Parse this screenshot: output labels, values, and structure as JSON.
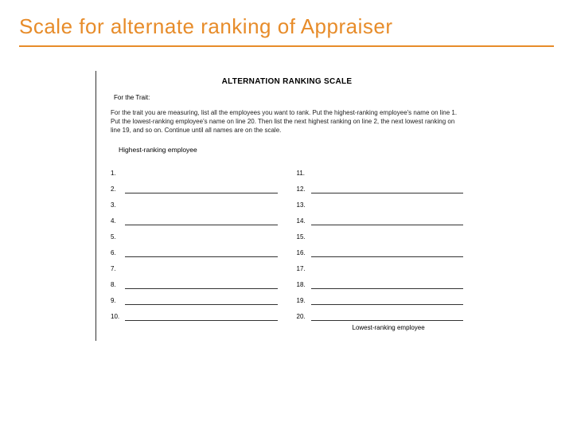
{
  "title": "Scale for alternate ranking of Appraiser",
  "form": {
    "heading": "ALTERNATION RANKING SCALE",
    "trait_label": "For the Trait:",
    "instructions": "For the trait you are measuring, list all the employees you want to rank. Put the highest-ranking employee's name on line 1. Put the lowest-ranking employee's name on line 20. Then list the next highest ranking on line 2, the next lowest ranking on line 19, and so on. Continue until all names are on the scale.",
    "highest_label": "Highest-ranking employee",
    "lowest_label": "Lowest-ranking employee",
    "left_rows": [
      {
        "num": "1.",
        "line": false
      },
      {
        "num": "2.",
        "line": true
      },
      {
        "num": "3.",
        "line": false
      },
      {
        "num": "4.",
        "line": true
      },
      {
        "num": "5.",
        "line": false
      },
      {
        "num": "6.",
        "line": true
      },
      {
        "num": "7.",
        "line": false
      },
      {
        "num": "8.",
        "line": true
      },
      {
        "num": "9.",
        "line": true
      },
      {
        "num": "10.",
        "line": true
      }
    ],
    "right_rows": [
      {
        "num": "11.",
        "line": false
      },
      {
        "num": "12.",
        "line": true
      },
      {
        "num": "13.",
        "line": false
      },
      {
        "num": "14.",
        "line": true
      },
      {
        "num": "15.",
        "line": false
      },
      {
        "num": "16.",
        "line": true
      },
      {
        "num": "17.",
        "line": false
      },
      {
        "num": "18.",
        "line": true
      },
      {
        "num": "19.",
        "line": true
      },
      {
        "num": "20.",
        "line": true
      }
    ]
  },
  "colors": {
    "accent": "#e78c2a",
    "text": "#000000",
    "line": "#333333",
    "background": "#ffffff"
  }
}
